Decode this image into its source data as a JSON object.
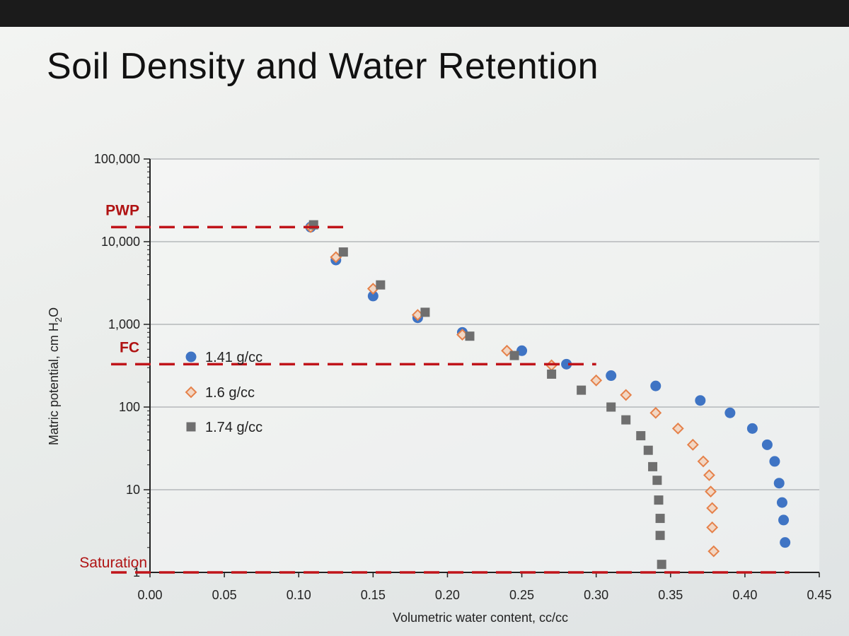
{
  "slide": {
    "title": "Soil Density and Water Retention"
  },
  "chart_data": {
    "type": "scatter",
    "title": "",
    "xlabel": "Volumetric water content, cc/cc",
    "ylabel": "Matric potential, cm H",
    "ylabel_sub": "2",
    "ylabel_end": "O",
    "xlim": [
      0.0,
      0.45
    ],
    "ylim": [
      1,
      100000
    ],
    "y_scale": "log",
    "x_ticks": [
      "0.00",
      "0.05",
      "0.10",
      "0.15",
      "0.20",
      "0.25",
      "0.30",
      "0.35",
      "0.40",
      "0.45"
    ],
    "y_ticks": [
      {
        "value": 1,
        "label": "1"
      },
      {
        "value": 10,
        "label": "10"
      },
      {
        "value": 100,
        "label": "100"
      },
      {
        "value": 1000,
        "label": "1,000"
      },
      {
        "value": 10000,
        "label": "10,000"
      },
      {
        "value": 100000,
        "label": "100,000"
      }
    ],
    "grid": "horizontal",
    "legend_position": "left-middle",
    "reference_lines": [
      {
        "label": "PWP",
        "value": 15000,
        "x_end": 0.135,
        "color": "#c0141a"
      },
      {
        "label": "FC",
        "value": 330,
        "x_end": 0.3,
        "color": "#c0141a"
      },
      {
        "label": "Saturation",
        "value": 1,
        "x_end": 0.43,
        "color": "#c0141a"
      }
    ],
    "series": [
      {
        "name": "1.41 g/cc",
        "marker": "circle",
        "color": "#3f74c4",
        "points": [
          [
            0.108,
            15000
          ],
          [
            0.125,
            6000
          ],
          [
            0.15,
            2200
          ],
          [
            0.18,
            1200
          ],
          [
            0.21,
            800
          ],
          [
            0.25,
            480
          ],
          [
            0.28,
            330
          ],
          [
            0.31,
            240
          ],
          [
            0.34,
            180
          ],
          [
            0.37,
            120
          ],
          [
            0.39,
            85
          ],
          [
            0.405,
            55
          ],
          [
            0.415,
            35
          ],
          [
            0.42,
            22
          ],
          [
            0.423,
            12
          ],
          [
            0.425,
            7
          ],
          [
            0.426,
            4.3
          ],
          [
            0.427,
            2.3
          ]
        ]
      },
      {
        "name": "1.6 g/cc",
        "marker": "diamond",
        "color": "#e5814a",
        "points": [
          [
            0.108,
            15000
          ],
          [
            0.125,
            6500
          ],
          [
            0.15,
            2700
          ],
          [
            0.18,
            1300
          ],
          [
            0.21,
            750
          ],
          [
            0.24,
            480
          ],
          [
            0.27,
            320
          ],
          [
            0.3,
            210
          ],
          [
            0.32,
            140
          ],
          [
            0.34,
            85
          ],
          [
            0.355,
            55
          ],
          [
            0.365,
            35
          ],
          [
            0.372,
            22
          ],
          [
            0.376,
            15
          ],
          [
            0.377,
            9.5
          ],
          [
            0.378,
            6
          ],
          [
            0.378,
            3.5
          ],
          [
            0.379,
            1.8
          ]
        ]
      },
      {
        "name": "1.74 g/cc",
        "marker": "square",
        "color": "#6f6f6f",
        "points": [
          [
            0.11,
            16000
          ],
          [
            0.13,
            7500
          ],
          [
            0.155,
            3000
          ],
          [
            0.185,
            1400
          ],
          [
            0.215,
            720
          ],
          [
            0.245,
            420
          ],
          [
            0.27,
            250
          ],
          [
            0.29,
            160
          ],
          [
            0.31,
            100
          ],
          [
            0.32,
            70
          ],
          [
            0.33,
            45
          ],
          [
            0.335,
            30
          ],
          [
            0.338,
            19
          ],
          [
            0.341,
            13
          ],
          [
            0.342,
            7.5
          ],
          [
            0.343,
            4.5
          ],
          [
            0.343,
            2.8
          ],
          [
            0.344,
            1.25
          ]
        ]
      }
    ]
  }
}
